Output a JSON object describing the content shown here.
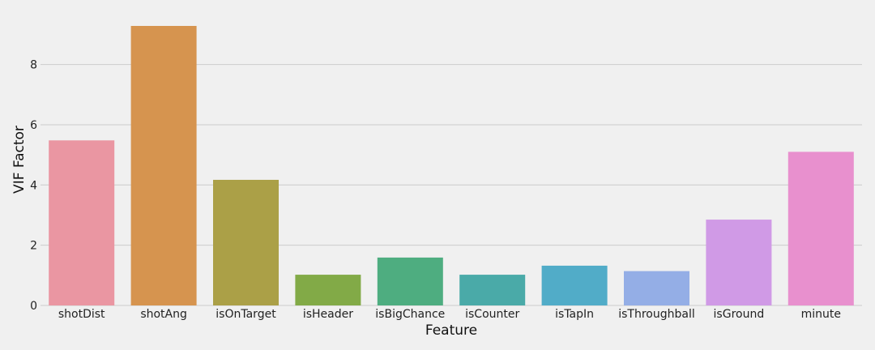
{
  "chart_data": {
    "type": "bar",
    "title": "",
    "xlabel": "Feature",
    "ylabel": "VIF Factor",
    "categories": [
      "shotDist",
      "shotAng",
      "isOnTarget",
      "isHeader",
      "isBigChance",
      "isCounter",
      "isTapIn",
      "isThroughball",
      "isGround",
      "minute"
    ],
    "values": [
      5.48,
      9.28,
      4.17,
      1.02,
      1.59,
      1.02,
      1.32,
      1.14,
      2.85,
      5.1
    ],
    "colors": [
      "#ea96a2",
      "#d6944f",
      "#aba047",
      "#82aa47",
      "#4ead80",
      "#4aaaa8",
      "#51acc8",
      "#94aee6",
      "#d09ae6",
      "#e890ce"
    ],
    "yticks": [
      "0",
      "2",
      "4",
      "6",
      "8"
    ],
    "ylim": [
      0,
      9.28
    ],
    "grid": true
  }
}
